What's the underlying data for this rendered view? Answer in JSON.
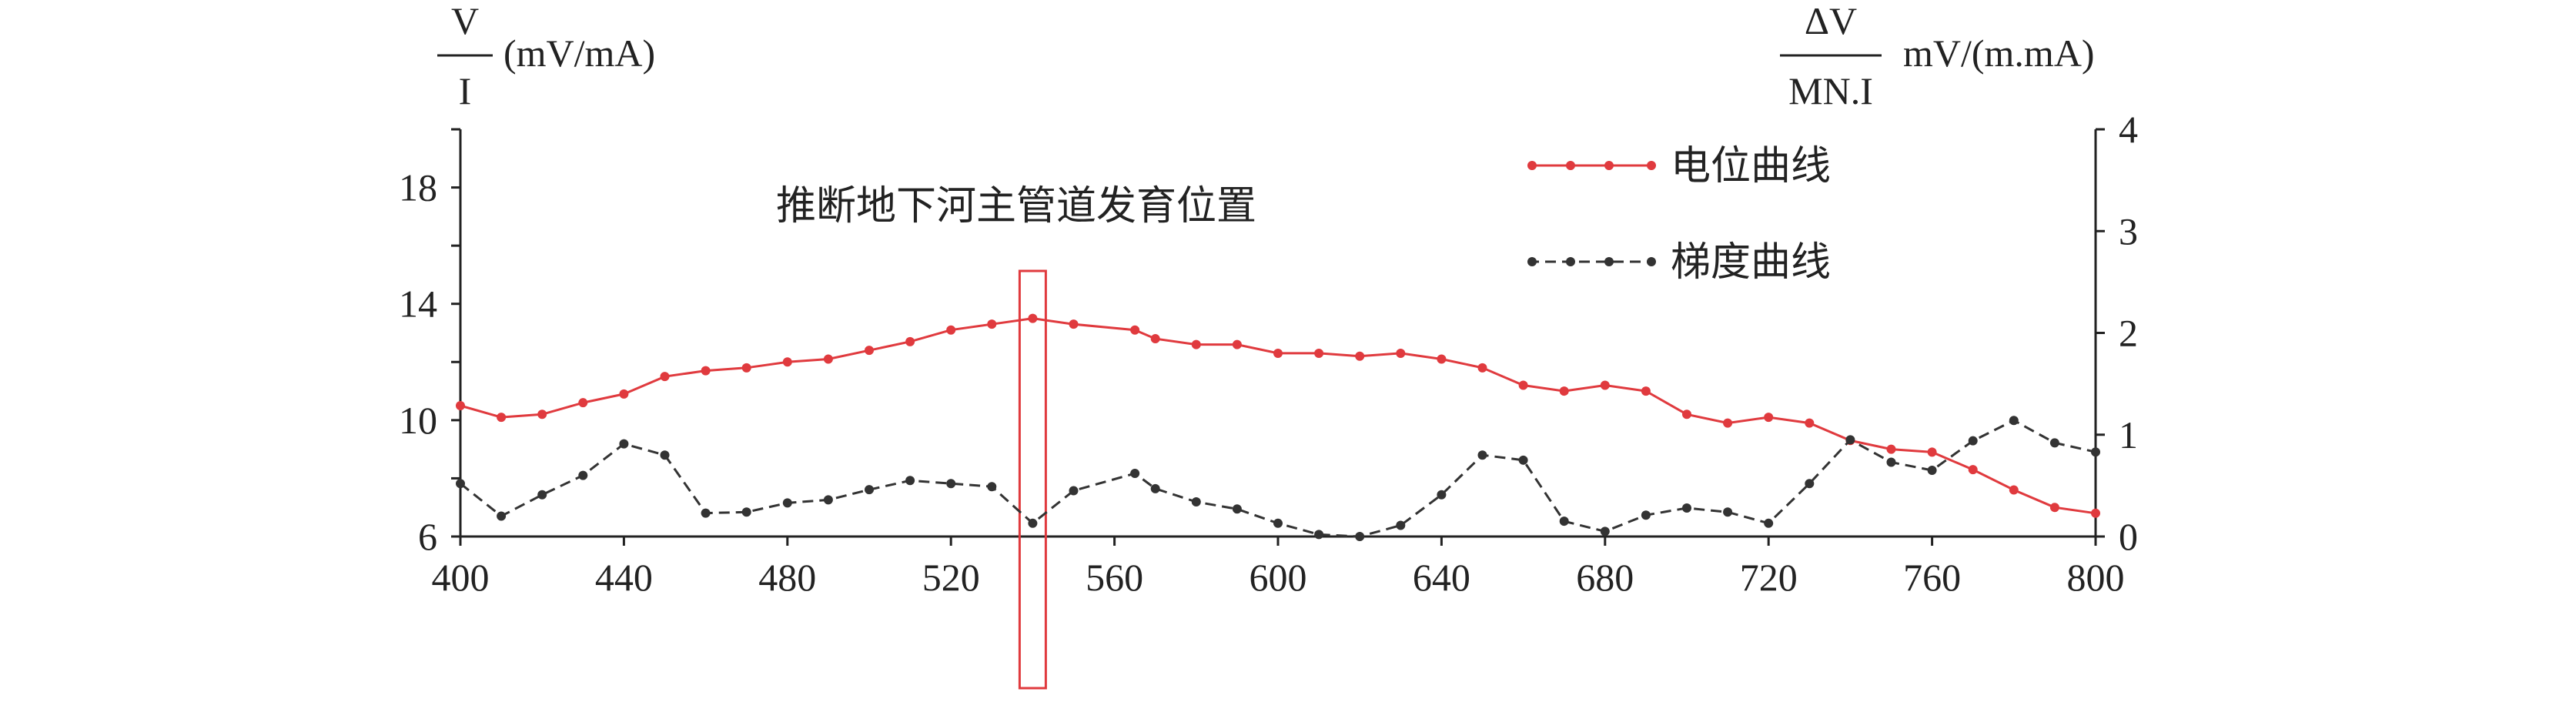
{
  "chart_data": {
    "type": "line",
    "y_left_label": {
      "numerator": "V",
      "denominator": "I",
      "unit": "(mV/mA)"
    },
    "y_right_label": {
      "numerator": "ΔV",
      "denominator": "MN.I",
      "unit": "mV/(m.mA)"
    },
    "annotation": "推断地下河主管道发育位置",
    "highlight_x": 540,
    "xlim": [
      400,
      800
    ],
    "x_ticks": [
      "400",
      "440",
      "480",
      "520",
      "560",
      "600",
      "640",
      "680",
      "720",
      "760",
      "800"
    ],
    "ylim_left": [
      6,
      20
    ],
    "y_left_ticks": [
      "6",
      "10",
      "14",
      "18"
    ],
    "ylim_right": [
      0,
      4
    ],
    "y_right_ticks": [
      "0",
      "1",
      "2",
      "3",
      "4"
    ],
    "legend_position": "top-right",
    "series": [
      {
        "name": "电位曲线",
        "axis": "left",
        "color": "#e03a3e",
        "x": [
          400,
          410,
          420,
          430,
          440,
          450,
          460,
          470,
          480,
          490,
          500,
          510,
          520,
          530,
          540,
          550,
          565,
          570,
          580,
          590,
          600,
          610,
          620,
          630,
          640,
          650,
          660,
          670,
          680,
          690,
          700,
          710,
          720,
          730,
          740,
          750,
          760,
          770,
          780,
          790,
          800
        ],
        "y": [
          10.5,
          10.1,
          10.2,
          10.6,
          10.9,
          11.5,
          11.7,
          11.8,
          12.0,
          12.1,
          12.4,
          12.7,
          13.1,
          13.3,
          13.5,
          13.3,
          13.1,
          12.8,
          12.6,
          12.6,
          12.3,
          12.3,
          12.2,
          12.3,
          12.1,
          11.8,
          11.2,
          11.0,
          11.2,
          11.0,
          10.2,
          9.9,
          10.1,
          9.9,
          9.3,
          9.0,
          8.9,
          8.3,
          7.6,
          7.0,
          6.8
        ]
      },
      {
        "name": "梯度曲线",
        "axis": "right",
        "color": "#333333",
        "x": [
          400,
          410,
          420,
          430,
          440,
          450,
          460,
          470,
          480,
          490,
          500,
          510,
          520,
          530,
          540,
          550,
          565,
          570,
          580,
          590,
          600,
          610,
          620,
          630,
          640,
          650,
          660,
          670,
          680,
          690,
          700,
          710,
          720,
          730,
          740,
          750,
          760,
          770,
          780,
          790,
          800
        ],
        "y": [
          0.52,
          0.2,
          0.41,
          0.6,
          0.91,
          0.8,
          0.23,
          0.24,
          0.33,
          0.36,
          0.46,
          0.55,
          0.52,
          0.49,
          0.13,
          0.45,
          0.62,
          0.47,
          0.34,
          0.27,
          0.13,
          0.02,
          0.0,
          0.11,
          0.41,
          0.8,
          0.75,
          0.15,
          0.05,
          0.21,
          0.28,
          0.24,
          0.13,
          0.52,
          0.95,
          0.73,
          0.65,
          0.94,
          1.14,
          0.92,
          0.83
        ]
      }
    ]
  }
}
